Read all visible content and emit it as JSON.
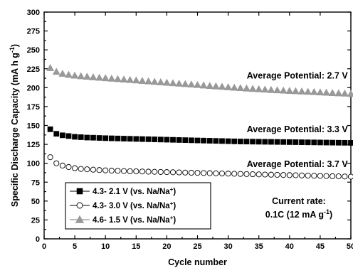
{
  "chart_data": {
    "type": "scatter",
    "xlabel": "Cycle number",
    "ylabel": "Specific Discharge Capacity (mA h g",
    "ylabel_sup": "-1",
    "ylabel_tail": ")",
    "xlim": [
      0,
      50
    ],
    "ylim": [
      0,
      300
    ],
    "x_ticks": [
      0,
      5,
      10,
      15,
      20,
      25,
      30,
      35,
      40,
      45,
      50
    ],
    "y_ticks": [
      0,
      25,
      50,
      75,
      100,
      125,
      150,
      175,
      200,
      225,
      250,
      275,
      300
    ],
    "grid": false,
    "legend_position": "bottom-left",
    "series": [
      {
        "name": "4.3- 2.1 V (vs. Na/Na",
        "name_sup": "+",
        "name_tail": ")",
        "marker": "square-filled",
        "color": "#000000",
        "x": [
          1,
          2,
          3,
          4,
          5,
          6,
          7,
          8,
          9,
          10,
          11,
          12,
          13,
          14,
          15,
          16,
          17,
          18,
          19,
          20,
          21,
          22,
          23,
          24,
          25,
          26,
          27,
          28,
          29,
          30,
          31,
          32,
          33,
          34,
          35,
          36,
          37,
          38,
          39,
          40,
          41,
          42,
          43,
          44,
          45,
          46,
          47,
          48,
          49,
          50
        ],
        "y": [
          145,
          139,
          137,
          136,
          135,
          134.5,
          134,
          133.8,
          133.5,
          133.2,
          133,
          132.8,
          132.6,
          132.4,
          132.2,
          132,
          131.8,
          131.6,
          131.4,
          131.2,
          131,
          130.8,
          130.6,
          130.4,
          130.2,
          130,
          129.8,
          129.6,
          129.4,
          129.2,
          129,
          128.8,
          128.7,
          128.6,
          128.5,
          128.4,
          128.3,
          128.2,
          128.1,
          128,
          127.9,
          127.8,
          127.7,
          127.6,
          127.5,
          127.4,
          127.3,
          127.2,
          127.1,
          127
        ]
      },
      {
        "name": "4.3- 3.0 V (vs. Na/Na",
        "name_sup": "+",
        "name_tail": ")",
        "marker": "circle-open",
        "color": "#000000",
        "x": [
          1,
          2,
          3,
          4,
          5,
          6,
          7,
          8,
          9,
          10,
          11,
          12,
          13,
          14,
          15,
          16,
          17,
          18,
          19,
          20,
          21,
          22,
          23,
          24,
          25,
          26,
          27,
          28,
          29,
          30,
          31,
          32,
          33,
          34,
          35,
          36,
          37,
          38,
          39,
          40,
          41,
          42,
          43,
          44,
          45,
          46,
          47,
          48,
          49,
          50
        ],
        "y": [
          108,
          100,
          97,
          95,
          93.5,
          92.5,
          92,
          91.5,
          91,
          90.6,
          90.3,
          90,
          89.7,
          89.5,
          89.3,
          89.1,
          88.9,
          88.7,
          88.5,
          88.3,
          88.1,
          87.9,
          87.7,
          87.5,
          87.3,
          87.1,
          86.9,
          86.7,
          86.5,
          86.3,
          86.1,
          85.9,
          85.7,
          85.5,
          85.3,
          85.1,
          84.9,
          84.7,
          84.5,
          84.3,
          84.1,
          83.9,
          83.7,
          83.5,
          83.3,
          83.1,
          82.9,
          82.7,
          82.5,
          82.3
        ]
      },
      {
        "name": "4.6- 1.5 V (vs. Na/Na",
        "name_sup": "+",
        "name_tail": ")",
        "marker": "triangle-filled",
        "color": "#999999",
        "x": [
          1,
          2,
          3,
          4,
          5,
          6,
          7,
          8,
          9,
          10,
          11,
          12,
          13,
          14,
          15,
          16,
          17,
          18,
          19,
          20,
          21,
          22,
          23,
          24,
          25,
          26,
          27,
          28,
          29,
          30,
          31,
          32,
          33,
          34,
          35,
          36,
          37,
          38,
          39,
          40,
          41,
          42,
          43,
          44,
          45,
          46,
          47,
          48,
          49,
          50
        ],
        "y": [
          226,
          221,
          218.5,
          217,
          216,
          215.2,
          214.5,
          213.8,
          213.2,
          212.6,
          212,
          211.4,
          210.8,
          210.2,
          209.6,
          209,
          208.4,
          207.8,
          207.2,
          206.6,
          206,
          205.4,
          204.8,
          204.2,
          203.6,
          203,
          202.4,
          201.8,
          201.2,
          200.6,
          200,
          199.5,
          199,
          198.5,
          198,
          197.5,
          197,
          196.6,
          196.2,
          195.8,
          195.4,
          195,
          194.6,
          194.2,
          193.8,
          193.4,
          193,
          192.6,
          192.2,
          191.8
        ]
      }
    ],
    "annotations": [
      {
        "text": "Average Potential: 2.7 V",
        "x": 49.5,
        "y": 212
      },
      {
        "text": "Average Potential: 3.3 V",
        "x": 49.5,
        "y": 141
      },
      {
        "text": "Average Potential: 3.7 V",
        "x": 49.5,
        "y": 95
      }
    ],
    "note_line1": "Current rate:",
    "note_line2_a": "0.1C (12 mA g",
    "note_line2_sup": "-1",
    "note_line2_b": ")"
  }
}
